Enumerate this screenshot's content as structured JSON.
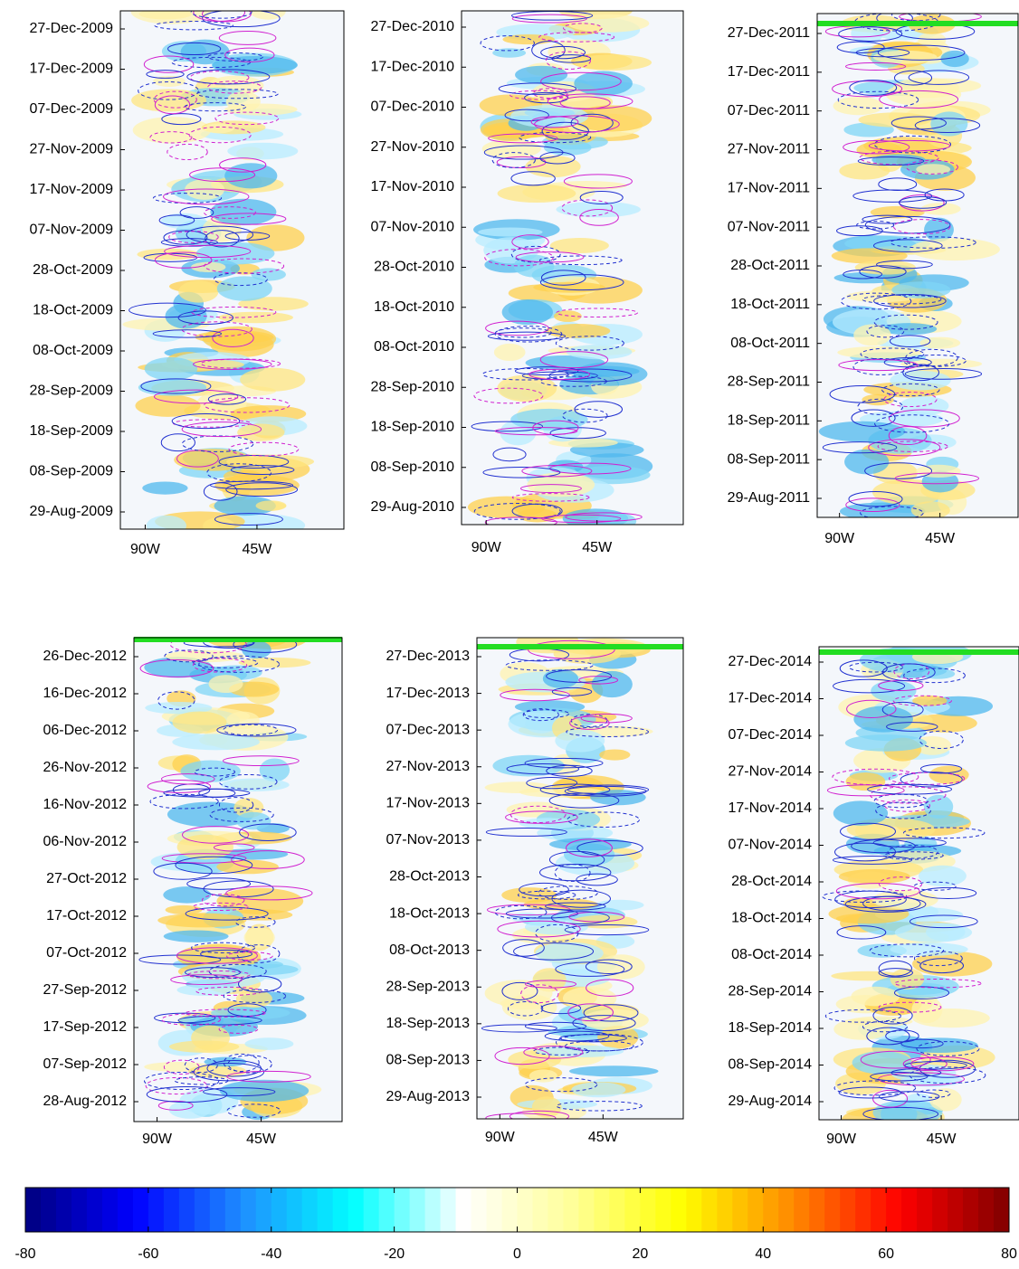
{
  "chart_data": [
    {
      "type": "hovmoller",
      "yticks": [
        "27-Dec-2009",
        "17-Dec-2009",
        "07-Dec-2009",
        "27-Nov-2009",
        "17-Nov-2009",
        "07-Nov-2009",
        "28-Oct-2009",
        "18-Oct-2009",
        "08-Oct-2009",
        "28-Sep-2009",
        "18-Sep-2009",
        "08-Sep-2009",
        "29-Aug-2009"
      ],
      "xlim": [
        -100,
        -10
      ],
      "xticks": [
        {
          "value": -90,
          "label": "90W"
        },
        {
          "value": -45,
          "label": "45W"
        }
      ]
    },
    {
      "type": "hovmoller",
      "yticks": [
        "27-Dec-2010",
        "17-Dec-2010",
        "07-Dec-2010",
        "27-Nov-2010",
        "17-Nov-2010",
        "07-Nov-2010",
        "28-Oct-2010",
        "18-Oct-2010",
        "08-Oct-2010",
        "28-Sep-2010",
        "18-Sep-2010",
        "08-Sep-2010",
        "29-Aug-2010"
      ],
      "xlim": [
        -100,
        -10
      ],
      "xticks": [
        {
          "value": -90,
          "label": "90W"
        },
        {
          "value": -45,
          "label": "45W"
        }
      ]
    },
    {
      "type": "hovmoller",
      "yticks": [
        "27-Dec-2011",
        "17-Dec-2011",
        "07-Dec-2011",
        "27-Nov-2011",
        "17-Nov-2011",
        "07-Nov-2011",
        "28-Oct-2011",
        "18-Oct-2011",
        "08-Oct-2011",
        "28-Sep-2011",
        "18-Sep-2011",
        "08-Sep-2011",
        "29-Aug-2011"
      ],
      "xlim": [
        -100,
        -10
      ],
      "xticks": [
        {
          "value": -90,
          "label": "90W"
        },
        {
          "value": -45,
          "label": "45W"
        }
      ]
    },
    {
      "type": "hovmoller",
      "yticks": [
        "26-Dec-2012",
        "16-Dec-2012",
        "06-Dec-2012",
        "26-Nov-2012",
        "16-Nov-2012",
        "06-Nov-2012",
        "27-Oct-2012",
        "17-Oct-2012",
        "07-Oct-2012",
        "27-Sep-2012",
        "17-Sep-2012",
        "07-Sep-2012",
        "28-Aug-2012"
      ],
      "xlim": [
        -100,
        -10
      ],
      "xticks": [
        {
          "value": -90,
          "label": "90W"
        },
        {
          "value": -45,
          "label": "45W"
        }
      ]
    },
    {
      "type": "hovmoller",
      "yticks": [
        "27-Dec-2013",
        "17-Dec-2013",
        "07-Dec-2013",
        "27-Nov-2013",
        "17-Nov-2013",
        "07-Nov-2013",
        "28-Oct-2013",
        "18-Oct-2013",
        "08-Oct-2013",
        "28-Sep-2013",
        "18-Sep-2013",
        "08-Sep-2013",
        "29-Aug-2013"
      ],
      "xlim": [
        -100,
        -10
      ],
      "xticks": [
        {
          "value": -90,
          "label": "90W"
        },
        {
          "value": -45,
          "label": "45W"
        }
      ]
    },
    {
      "type": "hovmoller",
      "yticks": [
        "27-Dec-2014",
        "17-Dec-2014",
        "07-Dec-2014",
        "27-Nov-2014",
        "17-Nov-2014",
        "07-Nov-2014",
        "28-Oct-2014",
        "18-Oct-2014",
        "08-Oct-2014",
        "28-Sep-2014",
        "18-Sep-2014",
        "08-Sep-2014",
        "29-Aug-2014"
      ],
      "xlim": [
        -100,
        -10
      ],
      "xticks": [
        {
          "value": -90,
          "label": "90W"
        },
        {
          "value": -45,
          "label": "45W"
        }
      ]
    },
    {
      "type": "colorbar",
      "xlim": [
        -80,
        80
      ],
      "xticks": [
        -80,
        -60,
        -40,
        -20,
        0,
        20,
        40,
        60,
        80
      ],
      "colormap": [
        "#00007f",
        "#0000ff",
        "#1e90ff",
        "#00ffff",
        "#ffffff",
        "#ffff99",
        "#ffff00",
        "#ff8c00",
        "#ff0000",
        "#7f0000"
      ]
    }
  ]
}
